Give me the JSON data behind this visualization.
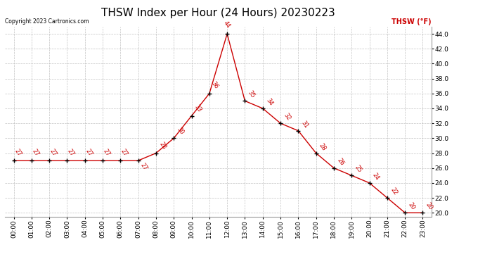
{
  "title": "THSW Index per Hour (24 Hours) 20230223",
  "copyright": "Copyright 2023 Cartronics.com",
  "legend_label": "THSW (°F)",
  "hours": [
    0,
    1,
    2,
    3,
    4,
    5,
    6,
    7,
    8,
    9,
    10,
    11,
    12,
    13,
    14,
    15,
    16,
    17,
    18,
    19,
    20,
    21,
    22,
    23
  ],
  "values": [
    27,
    27,
    27,
    27,
    27,
    27,
    27,
    27,
    28,
    30,
    33,
    36,
    44,
    35,
    34,
    32,
    31,
    28,
    26,
    25,
    24,
    22,
    20,
    20
  ],
  "ylim_min": 19.5,
  "ylim_max": 45.0,
  "line_color": "#cc0000",
  "marker_color": "#000000",
  "grid_color": "#bbbbbb",
  "bg_color": "#ffffff",
  "title_fontsize": 11,
  "tick_fontsize": 6.5,
  "yticks": [
    20.0,
    22.0,
    24.0,
    26.0,
    28.0,
    30.0,
    32.0,
    34.0,
    36.0,
    38.0,
    40.0,
    42.0,
    44.0
  ]
}
